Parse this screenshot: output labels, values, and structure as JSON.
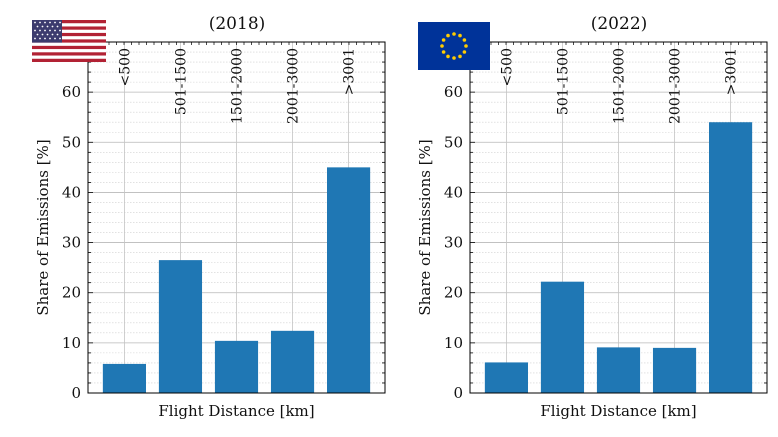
{
  "chart_data": [
    {
      "type": "bar",
      "title": "(2018)",
      "xlabel": "Flight Distance [km]",
      "ylabel": "Share of Emissions [%]",
      "categories": [
        "<500",
        "501-1500",
        "1501-2000",
        "2001-3000",
        ">3001"
      ],
      "values": [
        5.8,
        26.5,
        10.4,
        12.4,
        45.0
      ],
      "ylim": [
        0,
        70
      ],
      "yticks": [
        0,
        10,
        20,
        30,
        40,
        50,
        60
      ],
      "grid": true,
      "bar_color": "#1f77b4",
      "flag_icon": "us-flag-icon"
    },
    {
      "type": "bar",
      "title": "(2022)",
      "xlabel": "Flight Distance [km]",
      "ylabel": "Share of Emissions [%]",
      "categories": [
        "<500",
        "501-1500",
        "1501-2000",
        "2001-3000",
        ">3001"
      ],
      "values": [
        6.1,
        22.2,
        9.1,
        9.0,
        54.0
      ],
      "ylim": [
        0,
        70
      ],
      "yticks": [
        0,
        10,
        20,
        30,
        40,
        50,
        60
      ],
      "grid": true,
      "bar_color": "#1f77b4",
      "flag_icon": "eu-flag-icon"
    }
  ]
}
